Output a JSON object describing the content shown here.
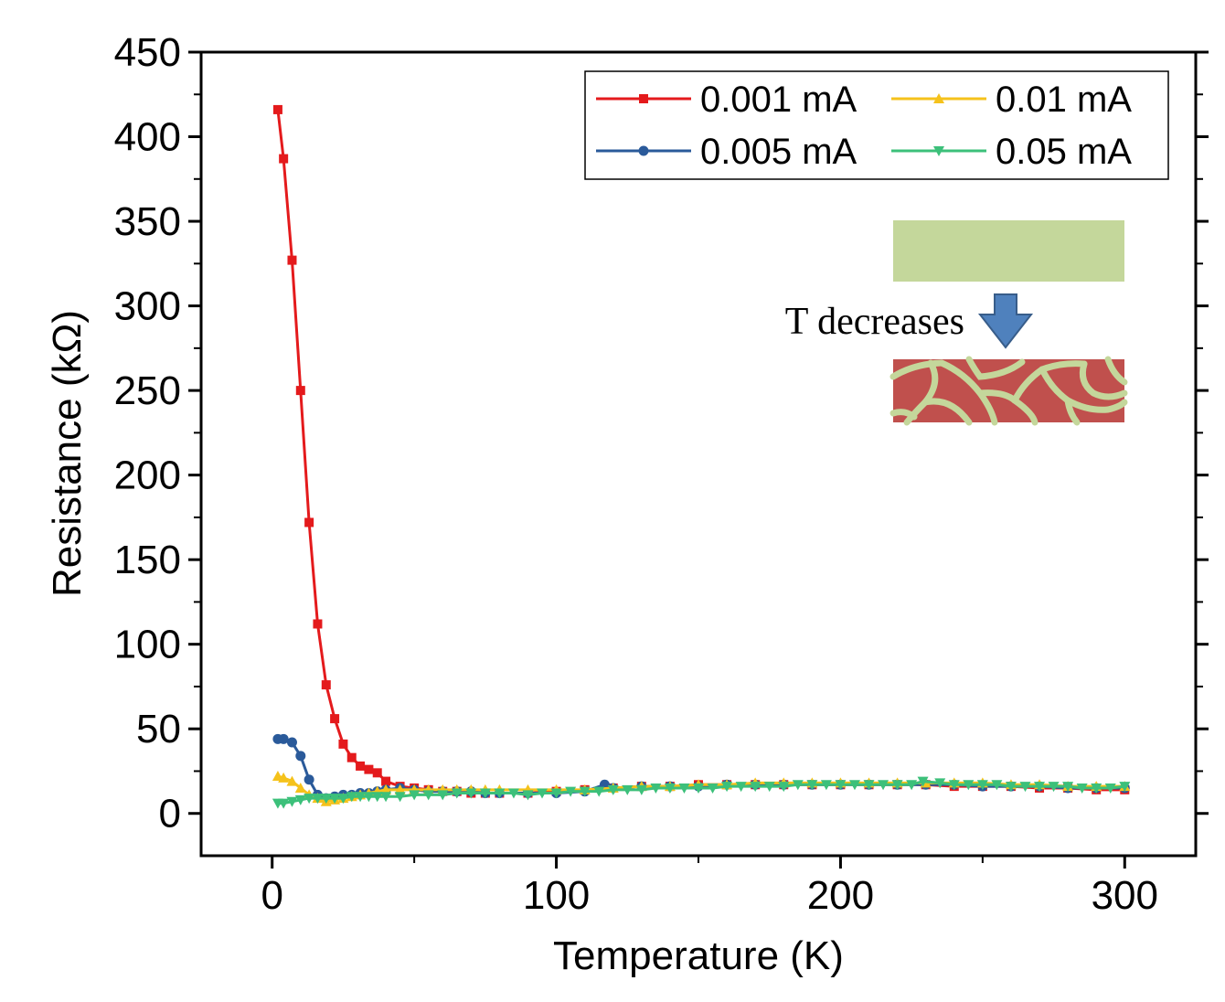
{
  "chart_data": {
    "type": "line",
    "title": "",
    "xlabel": "Temperature (K)",
    "ylabel": "Resistance (kΩ)",
    "xlim": [
      -25,
      325
    ],
    "ylim": [
      -25,
      450
    ],
    "xticks": [
      0,
      100,
      200,
      300
    ],
    "yticks": [
      0,
      50,
      100,
      150,
      200,
      250,
      300,
      350,
      400,
      450
    ],
    "legend_position": "top-right",
    "series": [
      {
        "name": "0.001 mA",
        "color": "#e41a1c",
        "marker": "square",
        "x": [
          2,
          4,
          7,
          10,
          13,
          16,
          19,
          22,
          25,
          28,
          31,
          34,
          37,
          40,
          45,
          50,
          55,
          60,
          65,
          70,
          75,
          80,
          90,
          100,
          110,
          120,
          130,
          140,
          150,
          160,
          170,
          180,
          190,
          200,
          210,
          220,
          230,
          240,
          250,
          260,
          270,
          280,
          290,
          300
        ],
        "y": [
          416,
          387,
          327,
          250,
          172,
          112,
          76,
          56,
          41,
          33,
          28,
          26,
          24,
          19,
          16,
          15,
          14,
          13,
          13,
          12,
          12,
          12,
          12,
          13,
          14,
          15,
          16,
          16,
          17,
          17,
          17,
          17,
          17,
          17,
          17,
          17,
          17,
          16,
          16,
          16,
          15,
          15,
          14,
          14
        ]
      },
      {
        "name": "0.005 mA",
        "color": "#2a5a9a",
        "marker": "circle",
        "x": [
          2,
          4,
          7,
          10,
          13,
          16,
          19,
          22,
          25,
          28,
          31,
          34,
          37,
          40,
          45,
          50,
          55,
          60,
          65,
          70,
          75,
          80,
          90,
          100,
          110,
          117,
          120,
          130,
          140,
          150,
          160,
          170,
          180,
          190,
          200,
          210,
          220,
          230,
          240,
          250,
          260,
          270,
          280,
          290,
          300
        ],
        "y": [
          44,
          44,
          42,
          34,
          20,
          11,
          9,
          10,
          11,
          11,
          12,
          12,
          13,
          14,
          15,
          14,
          13,
          13,
          13,
          13,
          12,
          12,
          12,
          12,
          13,
          17,
          15,
          16,
          16,
          16,
          17,
          17,
          17,
          17,
          17,
          17,
          17,
          17,
          17,
          16,
          16,
          16,
          15,
          15,
          15
        ]
      },
      {
        "name": "0.01 mA",
        "color": "#f5c21b",
        "marker": "triangle-up",
        "x": [
          2,
          4,
          7,
          10,
          13,
          16,
          19,
          22,
          25,
          28,
          31,
          34,
          37,
          40,
          45,
          50,
          55,
          60,
          65,
          70,
          75,
          80,
          90,
          100,
          110,
          120,
          130,
          140,
          150,
          160,
          170,
          180,
          190,
          200,
          210,
          220,
          230,
          240,
          250,
          260,
          270,
          280,
          290,
          300
        ],
        "y": [
          22,
          21,
          19,
          15,
          11,
          9,
          7,
          8,
          9,
          10,
          11,
          12,
          13,
          14,
          14,
          14,
          14,
          14,
          14,
          14,
          14,
          14,
          14,
          14,
          14,
          15,
          16,
          16,
          17,
          17,
          18,
          18,
          18,
          18,
          18,
          18,
          18,
          18,
          18,
          17,
          17,
          16,
          16,
          16
        ]
      },
      {
        "name": "0.05 mA",
        "color": "#3cc07a",
        "marker": "triangle-down",
        "x": [
          2,
          4,
          7,
          10,
          13,
          16,
          19,
          22,
          25,
          28,
          31,
          34,
          37,
          40,
          45,
          50,
          55,
          60,
          65,
          70,
          75,
          80,
          85,
          90,
          95,
          100,
          105,
          110,
          115,
          120,
          125,
          130,
          135,
          140,
          145,
          150,
          155,
          160,
          165,
          170,
          175,
          180,
          185,
          190,
          195,
          200,
          205,
          210,
          215,
          220,
          225,
          229,
          235,
          240,
          245,
          250,
          255,
          260,
          265,
          270,
          275,
          280,
          285,
          290,
          295,
          300
        ],
        "y": [
          6,
          6,
          7,
          8,
          9,
          9,
          9,
          9,
          9,
          10,
          10,
          10,
          10,
          10,
          10,
          11,
          11,
          11,
          12,
          12,
          12,
          12,
          12,
          11,
          12,
          12,
          13,
          13,
          13,
          14,
          14,
          14,
          15,
          15,
          15,
          15,
          15,
          16,
          16,
          16,
          16,
          16,
          17,
          17,
          17,
          17,
          17,
          17,
          17,
          17,
          17,
          19,
          18,
          17,
          17,
          17,
          17,
          16,
          16,
          16,
          16,
          16,
          15,
          15,
          15,
          16
        ]
      }
    ],
    "inset": {
      "label": "T decreases",
      "top_color": "#c4d79b",
      "bottom_color": "#c0504d",
      "crack_color": "#c4d79b",
      "arrow_color": "#4f81bd"
    }
  }
}
